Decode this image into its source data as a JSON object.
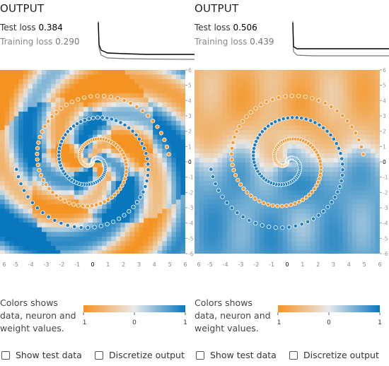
{
  "panels": [
    {
      "title": "OUTPUT",
      "test_loss_label": "Test loss",
      "test_loss_value": "0.384",
      "train_loss_label": "Training loss",
      "train_loss_value": "0.290",
      "colors_label": "Colors shows data, neuron and weight values.",
      "colorbar_ticks": [
        "-1",
        "0",
        "1"
      ],
      "show_test_label": "Show test data",
      "discretize_label": "Discretize output",
      "show_test_checked": false,
      "discretize_checked": false,
      "axis_ticks_x": [
        "6",
        "-5",
        "-4",
        "-3",
        "-2",
        "-1",
        "0",
        "1",
        "2",
        "3",
        "4",
        "5",
        "6"
      ],
      "axis_ticks_y": [
        "6",
        "5",
        "4",
        "3",
        "2",
        "1",
        "0",
        "-1",
        "-2",
        "-3",
        "-4",
        "-5",
        "-6"
      ],
      "heatmap_style": "pinwheel"
    },
    {
      "title": "OUTPUT",
      "test_loss_label": "Test loss",
      "test_loss_value": "0.506",
      "train_loss_label": "Training loss",
      "train_loss_value": "0.439",
      "colors_label": "Colors shows data, neuron and weight values.",
      "colorbar_ticks": [
        "-1",
        "0",
        "1"
      ],
      "show_test_label": "Show test data",
      "discretize_label": "Discretize output",
      "show_test_checked": false,
      "discretize_checked": false,
      "axis_ticks_x": [
        "6",
        "-5",
        "-4",
        "-3",
        "-2",
        "-1",
        "0",
        "1",
        "2",
        "3",
        "4",
        "5",
        "6"
      ],
      "axis_ticks_y": [
        "6",
        "5",
        "4",
        "3",
        "2",
        "1",
        "0",
        "-1",
        "-2",
        "-3",
        "-4",
        "-5",
        "-6"
      ],
      "heatmap_style": "banded"
    }
  ],
  "colors": {
    "orange": "#f59322",
    "blue": "#0877bd",
    "orange_point": "#f39c36",
    "blue_point": "#1f7fc4"
  }
}
